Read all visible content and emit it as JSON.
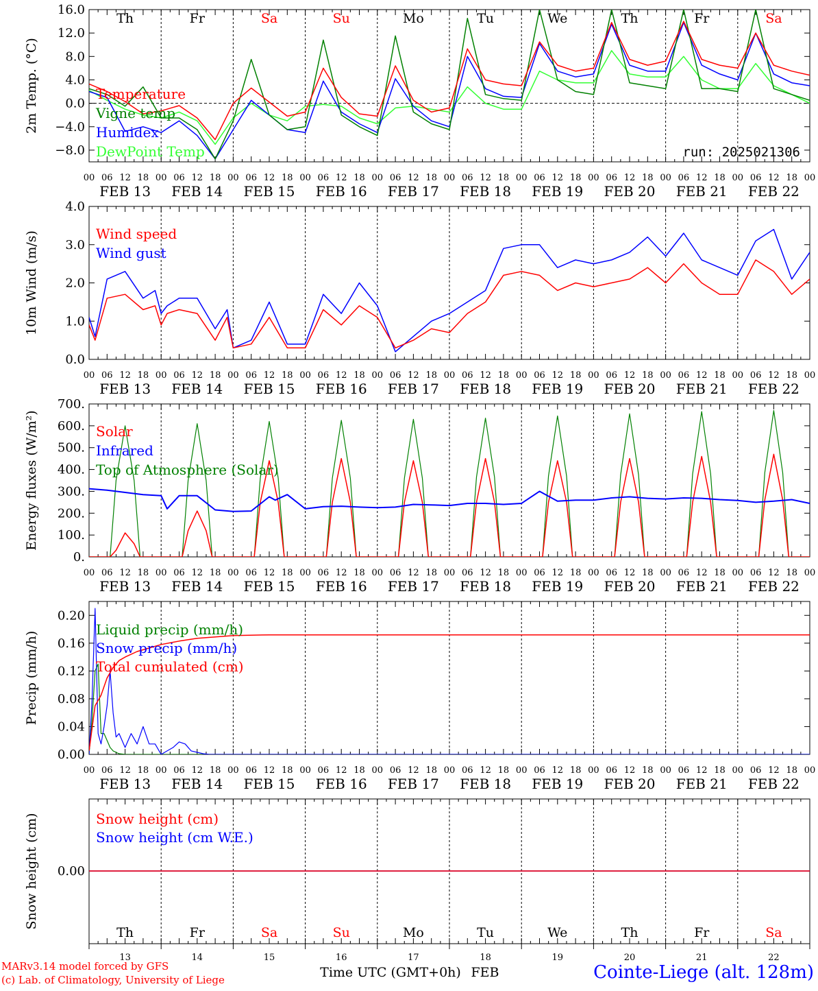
{
  "meta": {
    "run": "run: 2025021306",
    "credit1": "MARv3.14 model forced by GFS",
    "credit2": "(c) Lab. of Climatology, University of Liege",
    "station": "Cointe-Liege (alt. 128m)",
    "xtitle": "Time UTC (GMT+0h)",
    "xmonth": "FEB"
  },
  "colors": {
    "red": "#ff0000",
    "green": "#008000",
    "blue": "#0000ff",
    "lightgreen": "#33ff33",
    "weekend": "#ff0000",
    "weekday": "#000000"
  },
  "days": [
    {
      "dow": "Th",
      "date": "FEB 13",
      "num": "13",
      "weekend": false
    },
    {
      "dow": "Fr",
      "date": "FEB 14",
      "num": "14",
      "weekend": false
    },
    {
      "dow": "Sa",
      "date": "FEB 15",
      "num": "15",
      "weekend": true
    },
    {
      "dow": "Su",
      "date": "FEB 16",
      "num": "16",
      "weekend": true
    },
    {
      "dow": "Mo",
      "date": "FEB 17",
      "num": "17",
      "weekend": false
    },
    {
      "dow": "Tu",
      "date": "FEB 18",
      "num": "18",
      "weekend": false
    },
    {
      "dow": "We",
      "date": "FEB 19",
      "num": "19",
      "weekend": false
    },
    {
      "dow": "Th",
      "date": "FEB 20",
      "num": "20",
      "weekend": false
    },
    {
      "dow": "Fr",
      "date": "FEB 21",
      "num": "21",
      "weekend": false
    },
    {
      "dow": "Sa",
      "date": "FEB 22",
      "num": "22",
      "weekend": true
    }
  ],
  "hour_ticks": [
    "00",
    "06",
    "12",
    "18"
  ],
  "chart_data": [
    {
      "id": "temp",
      "type": "line",
      "ylabel": "2m Temp. (°C)",
      "yticks": [
        "16.0",
        "12.0",
        "8.0",
        "4.0",
        "0.0",
        "−4.0",
        "−8.0"
      ],
      "ylim": [
        -10,
        16
      ],
      "zero_line": true,
      "x_hours": [
        0,
        6,
        12,
        18,
        24,
        30,
        36,
        42,
        48,
        54,
        60,
        66,
        72,
        78,
        84,
        90,
        96,
        102,
        108,
        114,
        120,
        126,
        132,
        138,
        144,
        150,
        156,
        162,
        168,
        174,
        180,
        186,
        192,
        198,
        204,
        210,
        216,
        222,
        228,
        234,
        240
      ],
      "series": [
        {
          "name": "Temperature",
          "color": "red",
          "values": [
            3.3,
            2.0,
            0.3,
            -1.8,
            -1.3,
            -0.4,
            -2.5,
            -6.2,
            0.0,
            2.6,
            0.2,
            -2.2,
            -1.5,
            6.0,
            1.0,
            -1.8,
            -2.2,
            6.4,
            0.5,
            -1.5,
            -0.8,
            9.3,
            4.0,
            3.3,
            3.0,
            10.5,
            6.5,
            5.5,
            6.0,
            13.8,
            7.5,
            6.5,
            7.2,
            14.0,
            7.5,
            6.5,
            6.0,
            12.0,
            6.5,
            5.5,
            4.8
          ]
        },
        {
          "name": "Vigne temp",
          "color": "green",
          "values": [
            2.5,
            1.5,
            -0.5,
            2.8,
            -2.5,
            -2.5,
            -4.5,
            -9.5,
            -3.0,
            7.5,
            -2.0,
            -4.5,
            -4.0,
            10.8,
            -2.0,
            -4.0,
            -5.5,
            11.5,
            -1.5,
            -3.5,
            -4.5,
            14.5,
            1.5,
            0.8,
            0.5,
            16.0,
            4.0,
            2.0,
            1.5,
            16.0,
            3.5,
            3.0,
            2.5,
            16.0,
            2.5,
            2.5,
            2.0,
            16.0,
            2.5,
            1.5,
            0.5
          ]
        },
        {
          "name": "Humidex",
          "color": "blue",
          "values": [
            2.0,
            1.0,
            -4.8,
            -4.0,
            -5.0,
            -3.0,
            -5.5,
            -9.5,
            -4.5,
            0.5,
            -2.0,
            -4.5,
            -5.0,
            3.8,
            -1.5,
            -3.5,
            -5.0,
            4.2,
            -0.5,
            -3.0,
            -4.0,
            8.0,
            2.5,
            1.2,
            1.0,
            10.2,
            5.5,
            4.5,
            5.0,
            13.5,
            6.5,
            5.5,
            5.5,
            13.8,
            6.5,
            5.0,
            4.0,
            12.0,
            5.0,
            3.5,
            3.0
          ]
        },
        {
          "name": "DewPoint Temp",
          "color": "lightgreen",
          "values": [
            2.2,
            0.5,
            -1.0,
            -2.0,
            -2.5,
            -1.5,
            -3.0,
            -7.0,
            -2.5,
            0.0,
            -2.0,
            -3.0,
            -0.5,
            -0.2,
            -0.5,
            -2.5,
            -3.5,
            -0.8,
            -0.5,
            -1.0,
            -1.5,
            2.8,
            0.0,
            -1.0,
            -1.0,
            5.5,
            4.0,
            3.5,
            3.5,
            9.0,
            5.0,
            4.5,
            4.5,
            8.0,
            4.0,
            2.5,
            2.5,
            6.8,
            3.0,
            1.5,
            0.0
          ]
        }
      ]
    },
    {
      "id": "wind",
      "type": "line",
      "ylabel": "10m Wind (m/s)",
      "yticks": [
        "4.0",
        "3.0",
        "2.0",
        "1.0",
        "0.0"
      ],
      "ylim": [
        0,
        4
      ],
      "x_hours": [
        0,
        2,
        6,
        12,
        18,
        22,
        24,
        26,
        30,
        36,
        42,
        46,
        48,
        54,
        60,
        66,
        72,
        78,
        84,
        90,
        96,
        102,
        108,
        114,
        120,
        126,
        132,
        138,
        144,
        150,
        156,
        162,
        168,
        174,
        180,
        186,
        192,
        198,
        204,
        210,
        216,
        222,
        228,
        234,
        240
      ],
      "series": [
        {
          "name": "Wind speed",
          "color": "red",
          "values": [
            0.9,
            0.5,
            1.6,
            1.7,
            1.3,
            1.4,
            0.9,
            1.2,
            1.3,
            1.2,
            0.5,
            1.1,
            0.3,
            0.4,
            1.1,
            0.3,
            0.3,
            1.3,
            0.9,
            1.4,
            1.1,
            0.3,
            0.5,
            0.8,
            0.7,
            1.2,
            1.5,
            2.2,
            2.3,
            2.2,
            1.8,
            2.0,
            1.9,
            2.0,
            2.1,
            2.4,
            2.0,
            2.5,
            2.0,
            1.7,
            1.7,
            2.6,
            2.3,
            1.7,
            2.1
          ]
        },
        {
          "name": "Wind gust",
          "color": "blue",
          "values": [
            1.1,
            0.6,
            2.1,
            2.3,
            1.6,
            1.8,
            1.2,
            1.4,
            1.6,
            1.6,
            0.8,
            1.3,
            0.3,
            0.5,
            1.5,
            0.4,
            0.4,
            1.7,
            1.2,
            2.0,
            1.4,
            0.2,
            0.6,
            1.0,
            1.2,
            1.5,
            1.8,
            2.9,
            3.0,
            3.0,
            2.4,
            2.6,
            2.5,
            2.6,
            2.8,
            3.2,
            2.7,
            3.3,
            2.6,
            2.4,
            2.2,
            3.1,
            3.4,
            2.1,
            2.8
          ]
        }
      ]
    },
    {
      "id": "flux",
      "type": "line",
      "ylabel": "Energy fluxes (W/m²)",
      "yticks": [
        "700.",
        "600.",
        "500.",
        "400.",
        "300.",
        "200.",
        "100.",
        "0."
      ],
      "ylim": [
        0,
        700
      ],
      "x_hours": [
        0,
        7,
        9,
        12,
        15,
        17,
        24,
        31,
        33,
        36,
        39,
        41,
        48,
        55,
        57,
        60,
        63,
        65,
        72,
        79,
        81,
        84,
        87,
        89,
        96,
        103,
        105,
        108,
        111,
        113,
        120,
        127,
        129,
        132,
        135,
        137,
        144,
        151,
        153,
        156,
        159,
        161,
        168,
        175,
        177,
        180,
        183,
        185,
        192,
        199,
        201,
        204,
        207,
        209,
        216,
        223,
        225,
        228,
        231,
        233,
        240
      ],
      "series": [
        {
          "name": "Solar",
          "color": "red",
          "values": [
            0,
            0,
            30,
            110,
            60,
            0,
            0,
            0,
            120,
            210,
            120,
            0,
            0,
            0,
            250,
            440,
            250,
            0,
            0,
            0,
            250,
            450,
            250,
            0,
            0,
            0,
            250,
            440,
            250,
            0,
            0,
            0,
            250,
            450,
            250,
            0,
            0,
            0,
            250,
            440,
            250,
            0,
            0,
            0,
            250,
            450,
            250,
            0,
            0,
            0,
            250,
            460,
            250,
            0,
            0,
            0,
            260,
            470,
            260,
            0,
            0
          ]
        },
        {
          "name": "Top of Atmosphere (Solar)",
          "color": "green",
          "values": [
            0,
            0,
            350,
            600,
            350,
            0,
            0,
            0,
            350,
            610,
            350,
            0,
            0,
            0,
            360,
            620,
            360,
            0,
            0,
            0,
            360,
            625,
            360,
            0,
            0,
            0,
            360,
            630,
            360,
            0,
            0,
            0,
            365,
            635,
            365,
            0,
            0,
            0,
            370,
            645,
            370,
            0,
            0,
            0,
            375,
            655,
            375,
            0,
            0,
            0,
            380,
            665,
            380,
            0,
            0,
            0,
            385,
            670,
            385,
            0,
            0
          ]
        }
      ],
      "infrared": {
        "name": "Infrared",
        "color": "blue",
        "x_hours": [
          0,
          6,
          12,
          18,
          24,
          26,
          30,
          36,
          42,
          48,
          54,
          60,
          62,
          66,
          72,
          78,
          84,
          90,
          96,
          102,
          108,
          114,
          120,
          126,
          132,
          138,
          144,
          150,
          156,
          162,
          168,
          174,
          180,
          186,
          192,
          198,
          204,
          210,
          216,
          222,
          228,
          234,
          240
        ],
        "values": [
          312,
          305,
          295,
          285,
          280,
          220,
          280,
          280,
          215,
          208,
          210,
          275,
          260,
          285,
          220,
          230,
          232,
          228,
          225,
          228,
          240,
          238,
          235,
          245,
          245,
          240,
          245,
          300,
          255,
          260,
          260,
          270,
          275,
          268,
          265,
          270,
          268,
          262,
          258,
          250,
          255,
          262,
          245
        ]
      }
    },
    {
      "id": "precip",
      "type": "line",
      "ylabel": "Precip (mm/h)",
      "yticks": [
        "0.20",
        "0.16",
        "0.12",
        "0.08",
        "0.04",
        "0.00"
      ],
      "ylim": [
        0,
        0.22
      ],
      "x_hours": [
        0,
        1,
        2,
        3,
        4,
        5,
        6,
        7,
        8,
        9,
        10,
        12,
        14,
        16,
        18,
        20,
        22,
        24,
        26,
        28,
        30,
        32,
        34,
        36,
        38,
        40,
        42,
        48,
        240
      ],
      "series": [
        {
          "name": "Liquid precip (mm/h)",
          "color": "green",
          "values": [
            0.0,
            0.05,
            0.12,
            0.13,
            0.03,
            0.03,
            0.02,
            0.01,
            0.005,
            0.003,
            0.001,
            0.0,
            0.0,
            0.0,
            0.0,
            0.0,
            0.0,
            0.0,
            0.0,
            0.0,
            0.0,
            0.0,
            0.0,
            0.0,
            0.0,
            0.0,
            0.0,
            0.0,
            0.0
          ]
        },
        {
          "name": "Snow precip (mm/h)",
          "color": "blue",
          "values": [
            0.0,
            0.08,
            0.21,
            0.03,
            0.015,
            0.04,
            0.07,
            0.12,
            0.06,
            0.025,
            0.03,
            0.01,
            0.03,
            0.015,
            0.04,
            0.015,
            0.015,
            0.0,
            0.005,
            0.01,
            0.018,
            0.015,
            0.005,
            0.003,
            0.001,
            0.0,
            0.0,
            0.0,
            0.0
          ]
        }
      ],
      "cumulated": {
        "name": "Total cumulated (cm)",
        "color": "red",
        "x_hours": [
          0,
          2,
          4,
          6,
          8,
          10,
          12,
          16,
          20,
          24,
          30,
          36,
          42,
          48,
          60,
          240
        ],
        "values": [
          0.005,
          0.07,
          0.085,
          0.11,
          0.125,
          0.135,
          0.14,
          0.148,
          0.153,
          0.158,
          0.163,
          0.167,
          0.169,
          0.171,
          0.172,
          0.172
        ]
      }
    },
    {
      "id": "snow",
      "type": "line",
      "ylabel": "Snow height (cm)",
      "yticks": [
        "0.00"
      ],
      "series": [
        {
          "name": "Snow height (cm)",
          "color": "red",
          "values": [
            0,
            0
          ]
        },
        {
          "name": "Snow height (cm W.E.)",
          "color": "blue",
          "values": [
            0,
            0
          ]
        }
      ]
    }
  ]
}
